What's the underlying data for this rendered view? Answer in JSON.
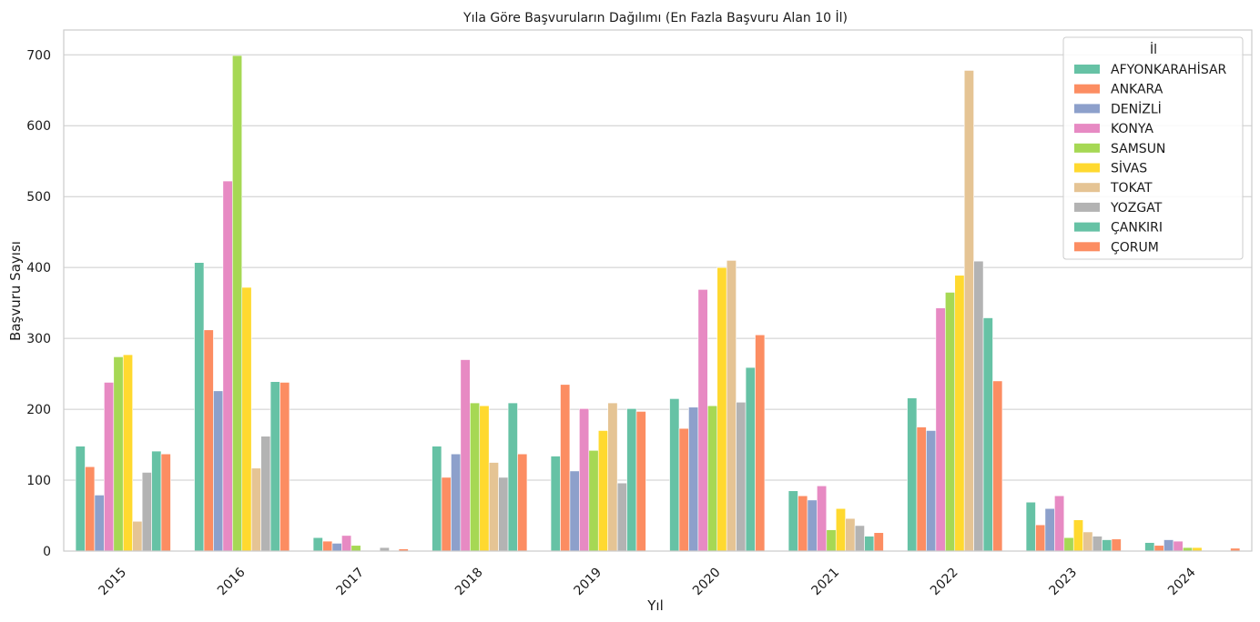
{
  "chart_data": {
    "type": "bar",
    "title": "Yıla Göre Başvuruların Dağılımı (En Fazla Başvuru Alan 10 İl)",
    "xlabel": "Yıl",
    "ylabel": "Başvuru Sayısı",
    "ylim": [
      0,
      735
    ],
    "yticks": [
      "0",
      "100",
      "200",
      "300",
      "400",
      "500",
      "600",
      "700"
    ],
    "grid": true,
    "legend_position": "top-right",
    "legend_title": "İl",
    "categories": [
      "2015",
      "2016",
      "2017",
      "2018",
      "2019",
      "2020",
      "2021",
      "2022",
      "2023",
      "2024"
    ],
    "series": [
      {
        "name": "AFYONKARAHİSAR",
        "color": "#66c2a5",
        "values": [
          148,
          407,
          19,
          148,
          134,
          215,
          85,
          216,
          69,
          12
        ]
      },
      {
        "name": "ANKARA",
        "color": "#fc8d62",
        "values": [
          119,
          312,
          14,
          104,
          235,
          173,
          78,
          175,
          37,
          8
        ]
      },
      {
        "name": "DENİZLİ",
        "color": "#8da0cb",
        "values": [
          79,
          226,
          11,
          137,
          113,
          203,
          72,
          170,
          60,
          16
        ]
      },
      {
        "name": "KONYA",
        "color": "#e78ac3",
        "values": [
          238,
          522,
          22,
          270,
          201,
          369,
          92,
          343,
          78,
          14
        ]
      },
      {
        "name": "SAMSUN",
        "color": "#a6d854",
        "values": [
          274,
          699,
          8,
          209,
          142,
          205,
          30,
          365,
          19,
          5
        ]
      },
      {
        "name": "SİVAS",
        "color": "#ffd92f",
        "values": [
          277,
          372,
          0,
          205,
          170,
          400,
          60,
          389,
          44,
          5
        ]
      },
      {
        "name": "TOKAT",
        "color": "#e5c494",
        "values": [
          42,
          117,
          0,
          125,
          209,
          410,
          46,
          678,
          27,
          0
        ]
      },
      {
        "name": "YOZGAT",
        "color": "#b3b3b3",
        "values": [
          111,
          162,
          5,
          104,
          96,
          210,
          36,
          409,
          21,
          0
        ]
      },
      {
        "name": "ÇANKIRI",
        "color": "#66c2a5",
        "values": [
          141,
          239,
          0,
          209,
          201,
          259,
          21,
          329,
          16,
          0
        ]
      },
      {
        "name": "ÇORUM",
        "color": "#fc8d62",
        "values": [
          137,
          238,
          3,
          137,
          197,
          305,
          26,
          240,
          17,
          4
        ]
      }
    ]
  }
}
